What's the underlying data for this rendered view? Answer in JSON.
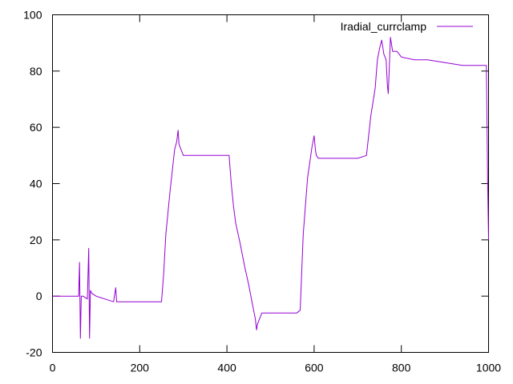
{
  "chart_data": {
    "type": "line",
    "title": "",
    "xlabel": "",
    "ylabel": "",
    "xlim": [
      0,
      1000
    ],
    "ylim": [
      -20,
      100
    ],
    "x_ticks": [
      0,
      200,
      400,
      600,
      800,
      1000
    ],
    "y_ticks": [
      -20,
      0,
      20,
      40,
      60,
      80,
      100
    ],
    "x_tick_labels": [
      "0",
      "200",
      "400",
      "600",
      "800",
      "1000"
    ],
    "y_tick_labels": [
      "-20",
      "0",
      "20",
      "40",
      "60",
      "80",
      "100"
    ],
    "grid": false,
    "legend_position": "top-right",
    "series": [
      {
        "name": "Iradial_currclamp",
        "color": "#9400d3",
        "x": [
          0,
          30,
          60,
          62,
          64,
          66,
          70,
          80,
          83,
          85,
          87,
          90,
          100,
          140,
          145,
          147,
          150,
          200,
          250,
          255,
          260,
          270,
          280,
          285,
          288,
          290,
          295,
          300,
          320,
          350,
          380,
          405,
          410,
          415,
          420,
          430,
          440,
          450,
          460,
          465,
          468,
          470,
          480,
          500,
          520,
          540,
          560,
          568,
          575,
          585,
          595,
          600,
          603,
          605,
          610,
          620,
          650,
          700,
          720,
          725,
          730,
          740,
          745,
          750,
          755,
          760,
          765,
          768,
          770,
          772,
          775,
          780,
          790,
          800,
          830,
          860,
          900,
          940,
          960,
          980,
          995,
          998,
          1000
        ],
        "y": [
          0,
          0,
          0,
          12,
          -15,
          0,
          0,
          -1,
          17,
          -15,
          2,
          1,
          0,
          -2,
          3,
          -2,
          -2,
          -2,
          -2,
          8,
          22,
          38,
          52,
          55,
          59,
          54,
          52,
          50,
          50,
          50,
          50,
          50,
          40,
          32,
          26,
          19,
          11,
          4,
          -4,
          -8,
          -12,
          -10,
          -6,
          -6,
          -6,
          -6,
          -6,
          -5,
          22,
          42,
          53,
          57,
          52,
          50,
          49,
          49,
          49,
          49,
          50,
          57,
          64,
          74,
          84,
          88,
          91,
          86,
          84,
          75,
          72,
          80,
          92,
          87,
          87,
          85,
          84,
          84,
          83,
          82,
          82,
          82,
          82,
          40,
          20
        ]
      }
    ]
  }
}
